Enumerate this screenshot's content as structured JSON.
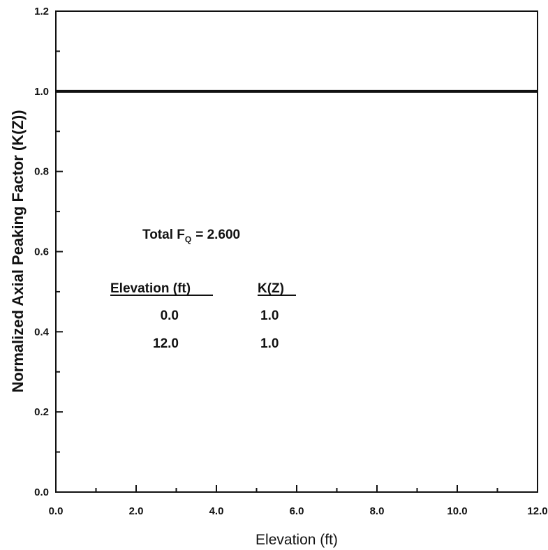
{
  "chart_data": {
    "type": "line",
    "xlabel": "Elevation (ft)",
    "ylabel": "Normalized Axial Peaking Factor (K(Z))",
    "xlim": [
      0,
      12
    ],
    "ylim": [
      0,
      1.2
    ],
    "x_ticks": [
      "0.0",
      "2.0",
      "4.0",
      "6.0",
      "8.0",
      "10.0",
      "12.0"
    ],
    "y_ticks": [
      "0.0",
      "0.2",
      "0.4",
      "0.6",
      "0.8",
      "1.0",
      "1.2"
    ],
    "grid": false,
    "series": [
      {
        "x": [
          0,
          12
        ],
        "y": [
          1.0,
          1.0
        ]
      }
    ],
    "annotations": {
      "total_fq_prefix": "Total F",
      "total_fq_subscript": "Q",
      "total_fq_value": "= 2.600",
      "table": {
        "headers": [
          "Elevation (ft)",
          "K(Z)"
        ],
        "rows": [
          [
            "0.0",
            "1.0"
          ],
          [
            "12.0",
            "1.0"
          ]
        ]
      }
    }
  }
}
